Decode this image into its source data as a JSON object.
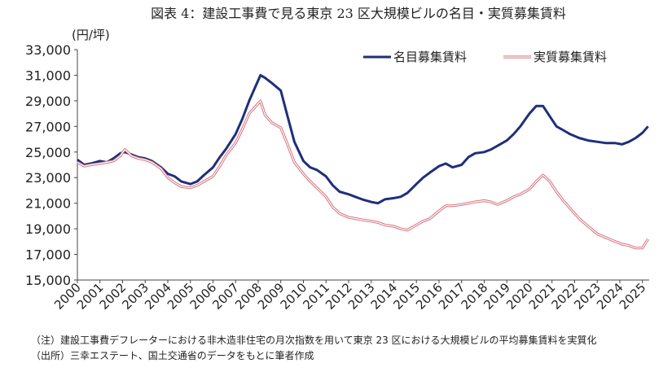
{
  "chart_data": {
    "type": "line",
    "title": "図表 4：建設工事費で見る東京 23 区大規模ビルの名目・実質募集賃料",
    "ylabel": "(円/坪)",
    "xlabel": "",
    "ylim": [
      15000,
      33000
    ],
    "yticks": [
      15000,
      17000,
      19000,
      21000,
      23000,
      25000,
      27000,
      29000,
      31000,
      33000
    ],
    "ytick_labels": [
      "15,000",
      "17,000",
      "19,000",
      "21,000",
      "23,000",
      "25,000",
      "27,000",
      "29,000",
      "31,000",
      "33,000"
    ],
    "xlim": [
      2000,
      2025.3
    ],
    "xticks": [
      "2000",
      "2001",
      "2002",
      "2003",
      "2004",
      "2005",
      "2006",
      "2007",
      "2008",
      "2009",
      "2010",
      "2011",
      "2012",
      "2013",
      "2014",
      "2015",
      "2016",
      "2017",
      "2018",
      "2019",
      "2020",
      "2021",
      "2022",
      "2023",
      "2024",
      "2025"
    ],
    "grid": false,
    "legend_position": "top-right",
    "series": [
      {
        "name": "名目募集賃料",
        "color": "#1f2f7a",
        "points": [
          [
            2000.0,
            24400
          ],
          [
            2000.3,
            24000
          ],
          [
            2000.6,
            24100
          ],
          [
            2001.0,
            24300
          ],
          [
            2001.3,
            24200
          ],
          [
            2001.6,
            24500
          ],
          [
            2001.9,
            24900
          ],
          [
            2002.1,
            25000
          ],
          [
            2002.4,
            24800
          ],
          [
            2002.7,
            24600
          ],
          [
            2003.0,
            24500
          ],
          [
            2003.3,
            24300
          ],
          [
            2003.7,
            23800
          ],
          [
            2004.0,
            23300
          ],
          [
            2004.3,
            23100
          ],
          [
            2004.6,
            22700
          ],
          [
            2005.0,
            22500
          ],
          [
            2005.3,
            22700
          ],
          [
            2005.6,
            23200
          ],
          [
            2006.0,
            23800
          ],
          [
            2006.3,
            24600
          ],
          [
            2006.6,
            25300
          ],
          [
            2007.0,
            26400
          ],
          [
            2007.3,
            27600
          ],
          [
            2007.6,
            29000
          ],
          [
            2007.9,
            30200
          ],
          [
            2008.1,
            31000
          ],
          [
            2008.3,
            30800
          ],
          [
            2008.6,
            30400
          ],
          [
            2009.0,
            29800
          ],
          [
            2009.3,
            27800
          ],
          [
            2009.6,
            25800
          ],
          [
            2010.0,
            24300
          ],
          [
            2010.3,
            23800
          ],
          [
            2010.6,
            23600
          ],
          [
            2011.0,
            23100
          ],
          [
            2011.3,
            22400
          ],
          [
            2011.6,
            21900
          ],
          [
            2012.0,
            21700
          ],
          [
            2012.3,
            21500
          ],
          [
            2012.6,
            21300
          ],
          [
            2013.0,
            21100
          ],
          [
            2013.3,
            21000
          ],
          [
            2013.6,
            21300
          ],
          [
            2014.0,
            21400
          ],
          [
            2014.3,
            21500
          ],
          [
            2014.6,
            21800
          ],
          [
            2015.0,
            22500
          ],
          [
            2015.3,
            23000
          ],
          [
            2015.6,
            23400
          ],
          [
            2016.0,
            23900
          ],
          [
            2016.3,
            24100
          ],
          [
            2016.6,
            23800
          ],
          [
            2017.0,
            24000
          ],
          [
            2017.3,
            24600
          ],
          [
            2017.6,
            24900
          ],
          [
            2018.0,
            25000
          ],
          [
            2018.3,
            25200
          ],
          [
            2018.6,
            25500
          ],
          [
            2019.0,
            25900
          ],
          [
            2019.3,
            26400
          ],
          [
            2019.6,
            27000
          ],
          [
            2020.0,
            28000
          ],
          [
            2020.3,
            28600
          ],
          [
            2020.6,
            28600
          ],
          [
            2020.9,
            27800
          ],
          [
            2021.2,
            27000
          ],
          [
            2021.5,
            26700
          ],
          [
            2021.8,
            26400
          ],
          [
            2022.2,
            26100
          ],
          [
            2022.6,
            25900
          ],
          [
            2023.0,
            25800
          ],
          [
            2023.4,
            25700
          ],
          [
            2023.8,
            25700
          ],
          [
            2024.1,
            25600
          ],
          [
            2024.4,
            25800
          ],
          [
            2024.7,
            26100
          ],
          [
            2025.0,
            26500
          ],
          [
            2025.25,
            27000
          ]
        ]
      },
      {
        "name": "実質募集賃料",
        "color": "#e7a2ad",
        "points": [
          [
            2000.0,
            24200
          ],
          [
            2000.3,
            23900
          ],
          [
            2000.6,
            24000
          ],
          [
            2001.0,
            24100
          ],
          [
            2001.3,
            24200
          ],
          [
            2001.6,
            24300
          ],
          [
            2001.9,
            24700
          ],
          [
            2002.1,
            25200
          ],
          [
            2002.4,
            24700
          ],
          [
            2002.7,
            24500
          ],
          [
            2003.0,
            24400
          ],
          [
            2003.3,
            24200
          ],
          [
            2003.7,
            23700
          ],
          [
            2004.0,
            23000
          ],
          [
            2004.3,
            22600
          ],
          [
            2004.6,
            22300
          ],
          [
            2005.0,
            22200
          ],
          [
            2005.3,
            22400
          ],
          [
            2005.6,
            22700
          ],
          [
            2006.0,
            23100
          ],
          [
            2006.3,
            23900
          ],
          [
            2006.6,
            24800
          ],
          [
            2007.0,
            25700
          ],
          [
            2007.3,
            26800
          ],
          [
            2007.6,
            28000
          ],
          [
            2007.9,
            28600
          ],
          [
            2008.1,
            29000
          ],
          [
            2008.3,
            27900
          ],
          [
            2008.6,
            27300
          ],
          [
            2009.0,
            26900
          ],
          [
            2009.3,
            25600
          ],
          [
            2009.6,
            24200
          ],
          [
            2010.0,
            23300
          ],
          [
            2010.3,
            22700
          ],
          [
            2010.6,
            22200
          ],
          [
            2011.0,
            21500
          ],
          [
            2011.3,
            20700
          ],
          [
            2011.6,
            20200
          ],
          [
            2012.0,
            19900
          ],
          [
            2012.3,
            19800
          ],
          [
            2012.6,
            19700
          ],
          [
            2013.0,
            19600
          ],
          [
            2013.3,
            19500
          ],
          [
            2013.6,
            19300
          ],
          [
            2014.0,
            19200
          ],
          [
            2014.3,
            19000
          ],
          [
            2014.6,
            18900
          ],
          [
            2015.0,
            19300
          ],
          [
            2015.3,
            19600
          ],
          [
            2015.6,
            19800
          ],
          [
            2016.0,
            20400
          ],
          [
            2016.3,
            20800
          ],
          [
            2016.6,
            20800
          ],
          [
            2017.0,
            20900
          ],
          [
            2017.3,
            21000
          ],
          [
            2017.6,
            21100
          ],
          [
            2018.0,
            21200
          ],
          [
            2018.3,
            21100
          ],
          [
            2018.6,
            20900
          ],
          [
            2019.0,
            21200
          ],
          [
            2019.3,
            21500
          ],
          [
            2019.6,
            21700
          ],
          [
            2020.0,
            22100
          ],
          [
            2020.3,
            22700
          ],
          [
            2020.6,
            23200
          ],
          [
            2020.9,
            22700
          ],
          [
            2021.2,
            21900
          ],
          [
            2021.5,
            21200
          ],
          [
            2021.8,
            20600
          ],
          [
            2022.2,
            19800
          ],
          [
            2022.6,
            19200
          ],
          [
            2023.0,
            18600
          ],
          [
            2023.4,
            18300
          ],
          [
            2023.8,
            18000
          ],
          [
            2024.1,
            17800
          ],
          [
            2024.4,
            17700
          ],
          [
            2024.7,
            17500
          ],
          [
            2025.0,
            17500
          ],
          [
            2025.25,
            18200
          ]
        ]
      }
    ],
    "notes": [
      "（注）建設工事費デフレーターにおける非木造非住宅の月次指数を用いて東京 23 区における大規模ビルの平均募集賃料を実質化",
      "（出所）三幸エステート、国土交通省のデータをもとに筆者作成"
    ]
  }
}
